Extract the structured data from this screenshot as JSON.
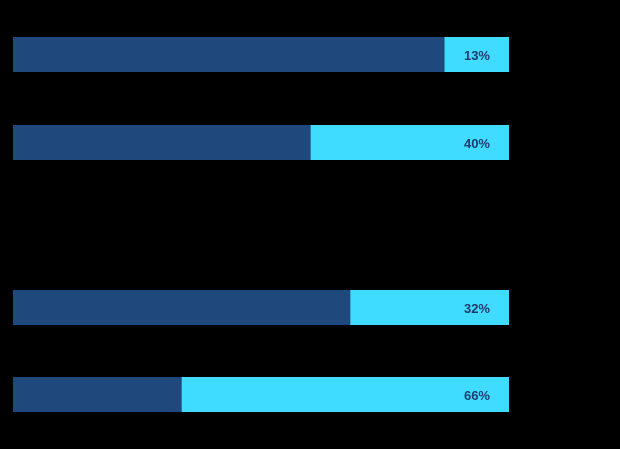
{
  "chart_data": {
    "type": "stacked-bar-horizontal",
    "categories": [
      null,
      null,
      null,
      null
    ],
    "series": [
      {
        "color": "#1f497d",
        "values": [
          87,
          60,
          68,
          34
        ]
      },
      {
        "color": "#3fdcff",
        "values": [
          13,
          40,
          32,
          66
        ],
        "value_labels": [
          "13%",
          "40%",
          "32%",
          "66%"
        ]
      }
    ],
    "xlim": [
      0,
      100
    ]
  }
}
